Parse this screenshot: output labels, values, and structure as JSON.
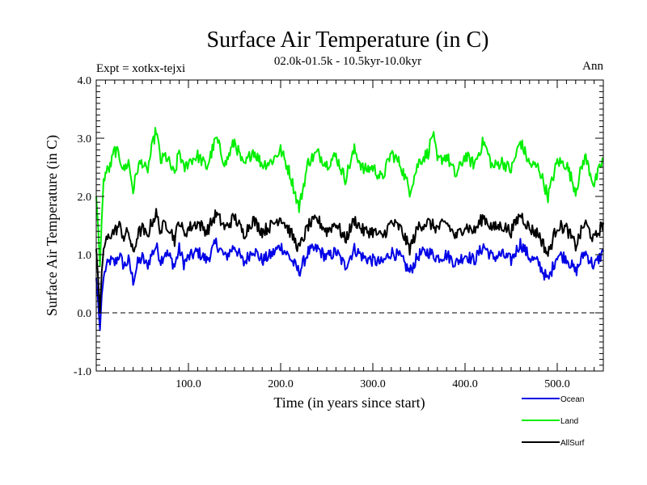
{
  "chart_data": {
    "type": "line",
    "title": "Surface Air Temperature (in C)",
    "subtitle": "02.0k-01.5k - 10.5kyr-10.0kyr",
    "expt_label": "Expt = xotkx-tejxi",
    "period_label": "Ann",
    "xlabel": "Time (in years since start)",
    "ylabel": "Surface Air Temperature (in C)",
    "xlim": [
      0,
      550
    ],
    "ylim": [
      -1.0,
      4.0
    ],
    "x_ticks": [
      100,
      200,
      300,
      400,
      500
    ],
    "x_tick_labels": [
      "100.0",
      "200.0",
      "300.0",
      "400.0",
      "500.0"
    ],
    "y_ticks": [
      -1,
      0,
      1,
      2,
      3,
      4
    ],
    "y_tick_labels": [
      "-1.0",
      "0.0",
      "1.0",
      "2.0",
      "3.0",
      "4.0"
    ],
    "zero_line": 0.0,
    "series": [
      {
        "name": "Ocean",
        "color": "#0000e6",
        "x": [
          0,
          2,
          4,
          6,
          8,
          10,
          15,
          20,
          25,
          30,
          35,
          40,
          45,
          50,
          55,
          60,
          65,
          70,
          75,
          80,
          85,
          90,
          95,
          100,
          110,
          120,
          130,
          140,
          150,
          160,
          170,
          180,
          190,
          200,
          210,
          220,
          230,
          240,
          250,
          260,
          270,
          280,
          290,
          300,
          310,
          320,
          330,
          340,
          350,
          360,
          370,
          380,
          390,
          400,
          410,
          420,
          430,
          440,
          450,
          460,
          470,
          480,
          490,
          500,
          510,
          520,
          530,
          540,
          550
        ],
        "values": [
          0.6,
          0.2,
          -0.3,
          0.3,
          0.6,
          0.75,
          0.9,
          0.85,
          1.0,
          0.8,
          0.9,
          0.55,
          0.85,
          0.95,
          0.8,
          1.0,
          1.15,
          0.9,
          1.05,
          0.95,
          0.8,
          1.1,
          0.85,
          0.95,
          1.05,
          0.9,
          1.2,
          0.95,
          1.15,
          0.85,
          1.1,
          0.9,
          1.0,
          1.15,
          0.95,
          0.7,
          1.05,
          1.1,
          0.95,
          1.05,
          0.8,
          1.1,
          0.95,
          0.9,
          0.85,
          1.05,
          0.95,
          0.7,
          1.0,
          1.05,
          0.95,
          1.0,
          0.85,
          1.0,
          0.9,
          1.15,
          0.95,
          1.0,
          0.9,
          1.2,
          0.95,
          0.85,
          0.55,
          1.0,
          0.95,
          0.7,
          1.05,
          0.8,
          1.05
        ]
      },
      {
        "name": "Land",
        "color": "#00ee00",
        "x": [
          0,
          2,
          4,
          6,
          8,
          10,
          15,
          20,
          25,
          30,
          35,
          40,
          45,
          50,
          55,
          60,
          65,
          70,
          75,
          80,
          85,
          90,
          95,
          100,
          110,
          120,
          130,
          140,
          150,
          160,
          170,
          180,
          190,
          200,
          210,
          220,
          230,
          240,
          250,
          260,
          270,
          280,
          290,
          300,
          310,
          320,
          330,
          340,
          350,
          360,
          365,
          370,
          380,
          390,
          400,
          410,
          420,
          430,
          440,
          450,
          460,
          470,
          480,
          490,
          500,
          510,
          520,
          530,
          540,
          550
        ],
        "values": [
          2.0,
          1.5,
          0.8,
          1.6,
          2.3,
          2.4,
          2.5,
          2.8,
          2.7,
          2.45,
          2.6,
          2.1,
          2.5,
          2.6,
          2.4,
          2.8,
          3.15,
          2.6,
          2.7,
          2.55,
          2.35,
          2.8,
          2.45,
          2.6,
          2.7,
          2.5,
          3.0,
          2.55,
          2.95,
          2.5,
          2.8,
          2.55,
          2.6,
          2.8,
          2.4,
          1.8,
          2.6,
          2.75,
          2.55,
          2.7,
          2.3,
          2.8,
          2.45,
          2.5,
          2.3,
          2.75,
          2.55,
          2.1,
          2.6,
          2.75,
          3.1,
          2.6,
          2.7,
          2.35,
          2.7,
          2.55,
          2.95,
          2.5,
          2.6,
          2.45,
          2.95,
          2.55,
          2.5,
          2.0,
          2.6,
          2.55,
          2.1,
          2.7,
          2.2,
          2.65
        ]
      },
      {
        "name": "AllSurf",
        "color": "#000000",
        "x": [
          0,
          2,
          4,
          6,
          8,
          10,
          15,
          20,
          25,
          30,
          35,
          40,
          45,
          50,
          55,
          60,
          65,
          70,
          75,
          80,
          85,
          90,
          95,
          100,
          110,
          120,
          130,
          140,
          150,
          160,
          170,
          180,
          190,
          200,
          210,
          220,
          230,
          240,
          250,
          260,
          270,
          280,
          290,
          300,
          310,
          320,
          330,
          340,
          350,
          360,
          370,
          380,
          390,
          400,
          410,
          420,
          430,
          440,
          450,
          460,
          470,
          480,
          490,
          500,
          510,
          520,
          530,
          540,
          550
        ],
        "values": [
          1.1,
          0.6,
          0.0,
          0.7,
          1.1,
          1.2,
          1.35,
          1.4,
          1.5,
          1.3,
          1.4,
          1.0,
          1.35,
          1.45,
          1.3,
          1.55,
          1.7,
          1.4,
          1.55,
          1.45,
          1.25,
          1.6,
          1.35,
          1.45,
          1.55,
          1.4,
          1.7,
          1.45,
          1.65,
          1.35,
          1.6,
          1.4,
          1.5,
          1.65,
          1.4,
          1.1,
          1.5,
          1.6,
          1.4,
          1.55,
          1.25,
          1.6,
          1.4,
          1.4,
          1.3,
          1.55,
          1.45,
          1.1,
          1.5,
          1.55,
          1.45,
          1.55,
          1.3,
          1.5,
          1.4,
          1.65,
          1.45,
          1.5,
          1.4,
          1.7,
          1.45,
          1.35,
          1.0,
          1.5,
          1.45,
          1.15,
          1.55,
          1.25,
          1.55
        ]
      }
    ]
  }
}
